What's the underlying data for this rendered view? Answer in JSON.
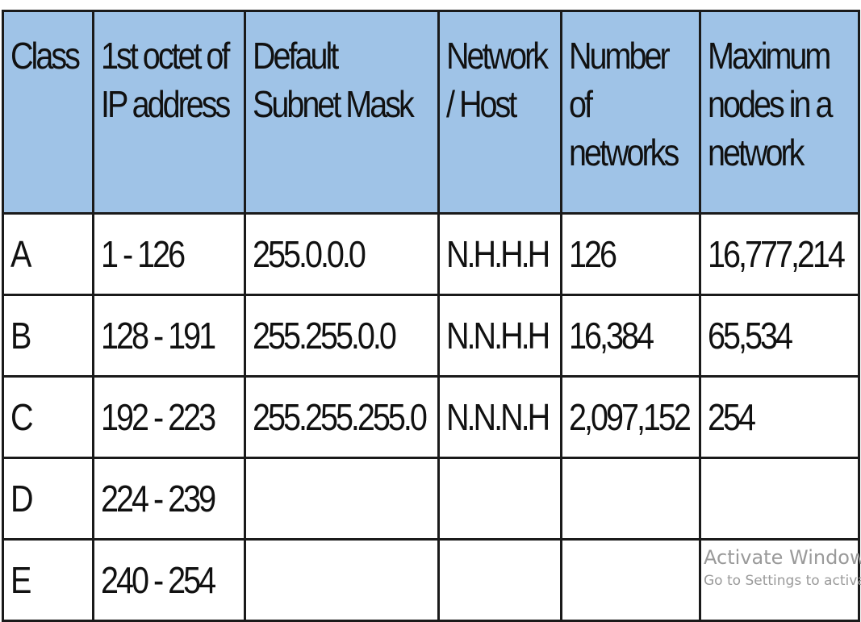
{
  "table": {
    "header_color": "#9fc3e7",
    "headers": [
      [
        "Class"
      ],
      [
        "1st octet of",
        "IP address"
      ],
      [
        "Default",
        "Subnet Mask"
      ],
      [
        "Network",
        "/ Host"
      ],
      [
        "Number",
        "of",
        "networks"
      ],
      [
        "Maximum",
        "nodes in a",
        "network"
      ]
    ],
    "rows": [
      [
        "A",
        "1 - 126",
        "255.0.0.0",
        "N.H.H.H",
        "126",
        "16,777,214"
      ],
      [
        "B",
        "128 - 191",
        "255.255.0.0",
        "N.N.H.H",
        "16,384",
        "65,534"
      ],
      [
        "C",
        "192 - 223",
        "255.255.255.0",
        "N.N.N.H",
        "2,097,152",
        "254"
      ],
      [
        "D",
        "224 - 239",
        "",
        "",
        "",
        ""
      ],
      [
        "E",
        "240 - 254",
        "",
        "",
        "",
        ""
      ]
    ]
  },
  "watermark": {
    "title": "Activate Windows",
    "subtitle": "Go to Settings to activate Windows."
  }
}
